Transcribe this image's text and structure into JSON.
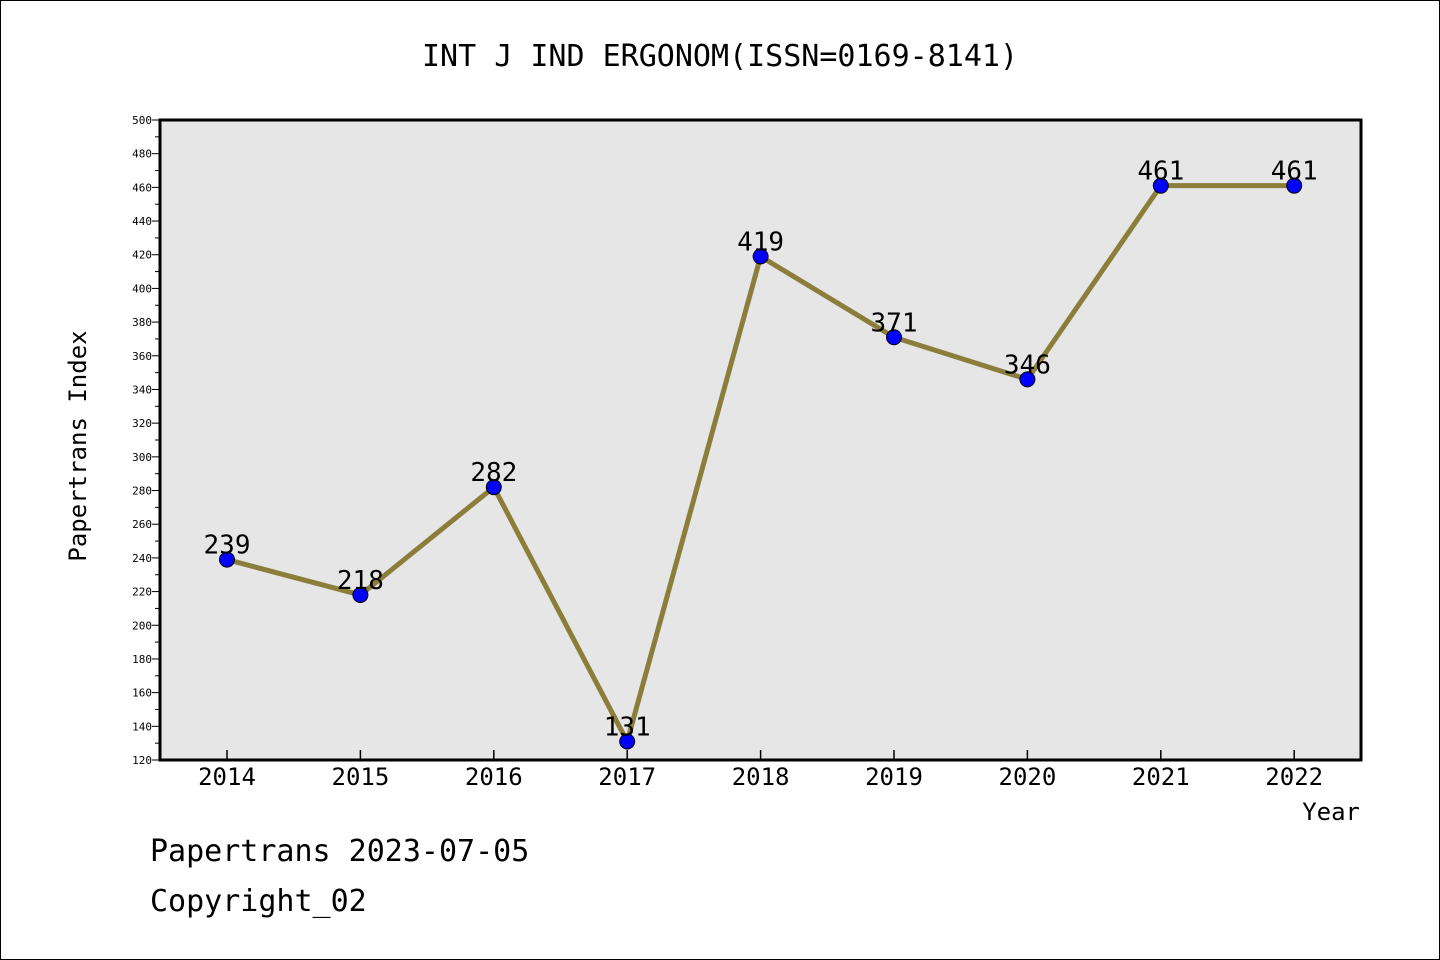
{
  "chart_data": {
    "type": "line",
    "title": "INT J IND ERGONOM(ISSN=0169-8141)",
    "xlabel": "Year",
    "ylabel": "Papertrans Index",
    "categories": [
      "2014",
      "2015",
      "2016",
      "2017",
      "2018",
      "2019",
      "2020",
      "2021",
      "2022"
    ],
    "series": [
      {
        "values": [
          239,
          218,
          282,
          131,
          419,
          371,
          346,
          461,
          461
        ]
      }
    ],
    "data_labels": [
      "239",
      "218",
      "282",
      "131",
      "419",
      "371",
      "346",
      "461",
      "461"
    ],
    "ylim": [
      120,
      500
    ],
    "yticks": [
      "120",
      "140",
      "160",
      "180",
      "200",
      "220",
      "240",
      "260",
      "280",
      "300",
      "320",
      "340",
      "360",
      "380",
      "400",
      "420",
      "440",
      "460",
      "480",
      "500"
    ],
    "grid": false,
    "colors": {
      "line": "#8b7d3a",
      "marker": "#0000ff",
      "plot_background": "#e6e6e6"
    }
  },
  "footer": {
    "line1": "Papertrans 2023-07-05",
    "line2": "Copyright_02"
  }
}
